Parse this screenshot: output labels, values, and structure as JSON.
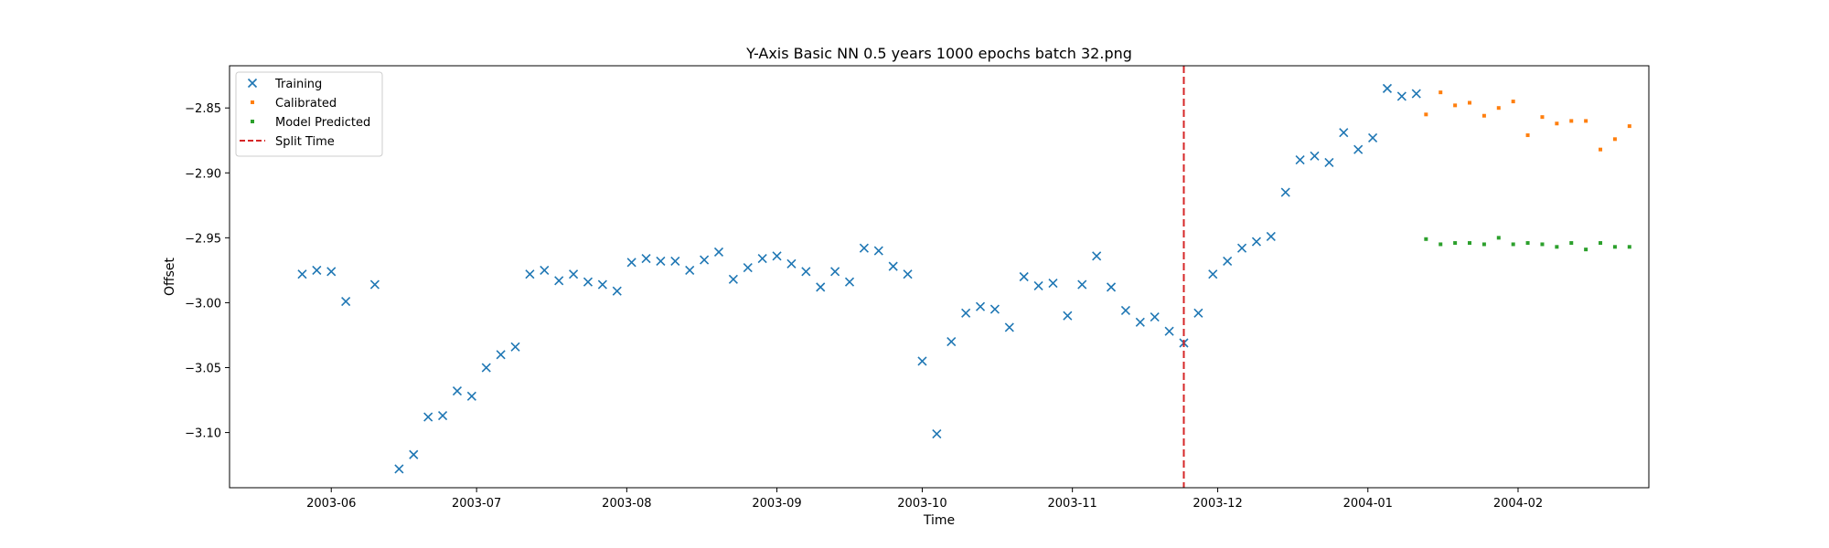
{
  "chart_data": {
    "type": "scatter",
    "title": "Y-Axis Basic NN 0.5 years 1000 epochs batch 32.png",
    "xlabel": "Time",
    "ylabel": "Offset",
    "xlim": [
      "2003-05-11",
      "2004-02-28"
    ],
    "ylim": [
      -3.1425,
      -2.8175
    ],
    "x_ticks": [
      "2003-06",
      "2003-07",
      "2003-08",
      "2003-09",
      "2003-10",
      "2003-11",
      "2003-12",
      "2004-01",
      "2004-02"
    ],
    "y_ticks": [
      -3.1,
      -3.05,
      -3.0,
      -2.95,
      -2.9,
      -2.85
    ],
    "y_tick_labels": [
      "−3.10",
      "−3.05",
      "−3.00",
      "−2.95",
      "−2.90",
      "−2.85"
    ],
    "grid": false,
    "legend_position": "top-left",
    "split_time": "2003-11-24",
    "series": [
      {
        "name": "Training",
        "marker": "x",
        "color": "#1f77b4",
        "points": [
          [
            "2003-05-26",
            -2.978
          ],
          [
            "2003-05-29",
            -2.975
          ],
          [
            "2003-06-01",
            -2.976
          ],
          [
            "2003-06-04",
            -2.999
          ],
          [
            "2003-06-10",
            -2.986
          ],
          [
            "2003-06-15",
            -3.128
          ],
          [
            "2003-06-18",
            -3.117
          ],
          [
            "2003-06-21",
            -3.088
          ],
          [
            "2003-06-24",
            -3.087
          ],
          [
            "2003-06-27",
            -3.068
          ],
          [
            "2003-06-30",
            -3.072
          ],
          [
            "2003-07-03",
            -3.05
          ],
          [
            "2003-07-06",
            -3.04
          ],
          [
            "2003-07-09",
            -3.034
          ],
          [
            "2003-07-12",
            -2.978
          ],
          [
            "2003-07-15",
            -2.975
          ],
          [
            "2003-07-18",
            -2.983
          ],
          [
            "2003-07-21",
            -2.978
          ],
          [
            "2003-07-24",
            -2.984
          ],
          [
            "2003-07-27",
            -2.986
          ],
          [
            "2003-07-30",
            -2.991
          ],
          [
            "2003-08-02",
            -2.969
          ],
          [
            "2003-08-05",
            -2.966
          ],
          [
            "2003-08-08",
            -2.968
          ],
          [
            "2003-08-11",
            -2.968
          ],
          [
            "2003-08-14",
            -2.975
          ],
          [
            "2003-08-17",
            -2.967
          ],
          [
            "2003-08-20",
            -2.961
          ],
          [
            "2003-08-23",
            -2.982
          ],
          [
            "2003-08-26",
            -2.973
          ],
          [
            "2003-08-29",
            -2.966
          ],
          [
            "2003-09-01",
            -2.964
          ],
          [
            "2003-09-04",
            -2.97
          ],
          [
            "2003-09-07",
            -2.976
          ],
          [
            "2003-09-10",
            -2.988
          ],
          [
            "2003-09-13",
            -2.976
          ],
          [
            "2003-09-16",
            -2.984
          ],
          [
            "2003-09-19",
            -2.958
          ],
          [
            "2003-09-22",
            -2.96
          ],
          [
            "2003-09-25",
            -2.972
          ],
          [
            "2003-09-28",
            -2.978
          ],
          [
            "2003-10-01",
            -3.045
          ],
          [
            "2003-10-04",
            -3.101
          ],
          [
            "2003-10-07",
            -3.03
          ],
          [
            "2003-10-10",
            -3.008
          ],
          [
            "2003-10-13",
            -3.003
          ],
          [
            "2003-10-16",
            -3.005
          ],
          [
            "2003-10-19",
            -3.019
          ],
          [
            "2003-10-22",
            -2.98
          ],
          [
            "2003-10-25",
            -2.987
          ],
          [
            "2003-10-28",
            -2.985
          ],
          [
            "2003-10-31",
            -3.01
          ],
          [
            "2003-11-03",
            -2.986
          ],
          [
            "2003-11-06",
            -2.964
          ],
          [
            "2003-11-09",
            -2.988
          ],
          [
            "2003-11-12",
            -3.006
          ],
          [
            "2003-11-15",
            -3.015
          ],
          [
            "2003-11-18",
            -3.011
          ],
          [
            "2003-11-21",
            -3.022
          ],
          [
            "2003-11-24",
            -3.031
          ],
          [
            "2003-11-27",
            -3.008
          ],
          [
            "2003-11-30",
            -2.978
          ],
          [
            "2003-12-03",
            -2.968
          ],
          [
            "2003-12-06",
            -2.958
          ],
          [
            "2003-12-09",
            -2.953
          ],
          [
            "2003-12-12",
            -2.949
          ],
          [
            "2003-12-15",
            -2.915
          ],
          [
            "2003-12-18",
            -2.89
          ],
          [
            "2003-12-21",
            -2.887
          ],
          [
            "2003-12-24",
            -2.892
          ],
          [
            "2003-12-27",
            -2.869
          ],
          [
            "2003-12-30",
            -2.882
          ],
          [
            "2004-01-02",
            -2.873
          ],
          [
            "2004-01-05",
            -2.835
          ],
          [
            "2004-01-08",
            -2.841
          ],
          [
            "2004-01-11",
            -2.839
          ]
        ]
      },
      {
        "name": "Calibrated",
        "marker": "square",
        "color": "#ff7f0e",
        "points": [
          [
            "2004-01-13",
            -2.855
          ],
          [
            "2004-01-16",
            -2.838
          ],
          [
            "2004-01-19",
            -2.848
          ],
          [
            "2004-01-22",
            -2.846
          ],
          [
            "2004-01-25",
            -2.856
          ],
          [
            "2004-01-28",
            -2.85
          ],
          [
            "2004-01-31",
            -2.845
          ],
          [
            "2004-02-03",
            -2.871
          ],
          [
            "2004-02-06",
            -2.857
          ],
          [
            "2004-02-09",
            -2.862
          ],
          [
            "2004-02-12",
            -2.86
          ],
          [
            "2004-02-15",
            -2.86
          ],
          [
            "2004-02-18",
            -2.882
          ],
          [
            "2004-02-21",
            -2.874
          ],
          [
            "2004-02-24",
            -2.864
          ]
        ]
      },
      {
        "name": "Model Predicted",
        "marker": "square",
        "color": "#2ca02c",
        "points": [
          [
            "2004-01-13",
            -2.951
          ],
          [
            "2004-01-16",
            -2.955
          ],
          [
            "2004-01-19",
            -2.954
          ],
          [
            "2004-01-22",
            -2.954
          ],
          [
            "2004-01-25",
            -2.955
          ],
          [
            "2004-01-28",
            -2.95
          ],
          [
            "2004-01-31",
            -2.955
          ],
          [
            "2004-02-03",
            -2.954
          ],
          [
            "2004-02-06",
            -2.955
          ],
          [
            "2004-02-09",
            -2.957
          ],
          [
            "2004-02-12",
            -2.954
          ],
          [
            "2004-02-15",
            -2.959
          ],
          [
            "2004-02-18",
            -2.954
          ],
          [
            "2004-02-21",
            -2.957
          ],
          [
            "2004-02-24",
            -2.957
          ]
        ]
      }
    ],
    "split_line": {
      "name": "Split Time",
      "color": "#d62728",
      "style": "dashed"
    }
  }
}
